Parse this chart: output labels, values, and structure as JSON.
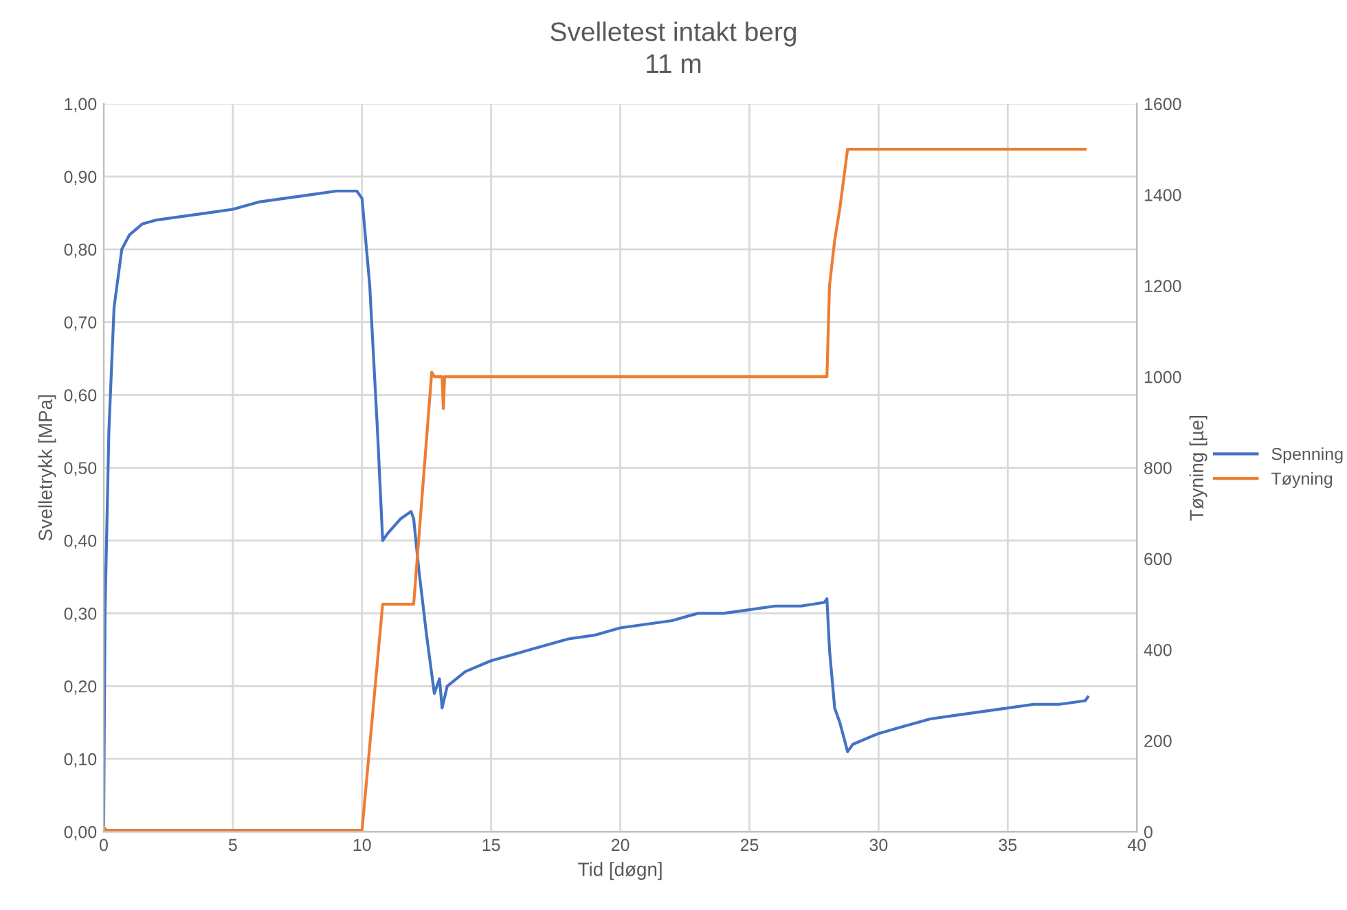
{
  "chart_data": {
    "type": "line",
    "title": "Svelletest intakt berg",
    "subtitle": "11 m",
    "xlabel": "Tid [døgn]",
    "ylabel": "Svelletrykk [MPa]",
    "y2label": "Tøyning [µe]",
    "xlim": [
      0,
      40
    ],
    "xticks": [
      0,
      5,
      10,
      15,
      20,
      25,
      30,
      35,
      40
    ],
    "ylim": [
      0,
      1
    ],
    "yticks": [
      {
        "value": 0,
        "label": "0,00"
      },
      {
        "value": 0.1,
        "label": "0,10"
      },
      {
        "value": 0.2,
        "label": "0,20"
      },
      {
        "value": 0.3,
        "label": "0,30"
      },
      {
        "value": 0.4,
        "label": "0,40"
      },
      {
        "value": 0.5,
        "label": "0,50"
      },
      {
        "value": 0.6,
        "label": "0,60"
      },
      {
        "value": 0.7,
        "label": "0,70"
      },
      {
        "value": 0.8,
        "label": "0,80"
      },
      {
        "value": 0.9,
        "label": "0,90"
      },
      {
        "value": 1,
        "label": "1,00"
      }
    ],
    "y2lim": [
      0,
      1600
    ],
    "y2ticks": [
      0,
      200,
      400,
      600,
      800,
      1000,
      1200,
      1400,
      1600
    ],
    "grid": true,
    "legend": "right",
    "marker": "none",
    "line_style": "solid",
    "series": [
      {
        "name": "Spenning",
        "color": "#4472c4",
        "x": [
          0,
          0.05,
          0.2,
          0.4,
          0.7,
          1.0,
          1.5,
          2,
          3,
          4,
          5,
          6,
          7,
          8,
          9,
          9.8,
          10.0,
          10.3,
          10.6,
          10.8,
          11,
          11.5,
          11.9,
          12.0,
          12.2,
          12.5,
          12.8,
          13.0,
          13.1,
          13.3,
          14,
          15,
          16,
          17,
          18,
          19,
          20,
          21,
          22,
          23,
          24,
          25,
          26,
          27,
          27.9,
          28.0,
          28.1,
          28.3,
          28.5,
          28.8,
          29,
          30,
          31,
          32,
          33,
          34,
          35,
          36,
          37,
          38,
          38.1
        ],
        "values": [
          0.01,
          0.3,
          0.55,
          0.72,
          0.8,
          0.82,
          0.835,
          0.84,
          0.845,
          0.85,
          0.855,
          0.865,
          0.87,
          0.875,
          0.88,
          0.88,
          0.87,
          0.75,
          0.55,
          0.4,
          0.41,
          0.43,
          0.44,
          0.43,
          0.36,
          0.27,
          0.19,
          0.21,
          0.17,
          0.2,
          0.22,
          0.235,
          0.245,
          0.255,
          0.265,
          0.27,
          0.28,
          0.285,
          0.29,
          0.3,
          0.3,
          0.305,
          0.31,
          0.31,
          0.315,
          0.32,
          0.25,
          0.17,
          0.15,
          0.11,
          0.12,
          0.135,
          0.145,
          0.155,
          0.16,
          0.165,
          0.17,
          0.175,
          0.175,
          0.18,
          0.185
        ]
      },
      {
        "name": "Tøyning",
        "color": "#ed7d31",
        "axis": "y2",
        "x": [
          0,
          0.1,
          10,
          10.8,
          12,
          12.7,
          12.8,
          13.1,
          13.15,
          13.2,
          28,
          28.1,
          28.3,
          28.5,
          28.8,
          38
        ],
        "values": [
          10,
          3,
          3,
          500,
          500,
          1010,
          1000,
          1000,
          930,
          1000,
          1000,
          1200,
          1300,
          1370,
          1500,
          1500
        ]
      }
    ]
  }
}
